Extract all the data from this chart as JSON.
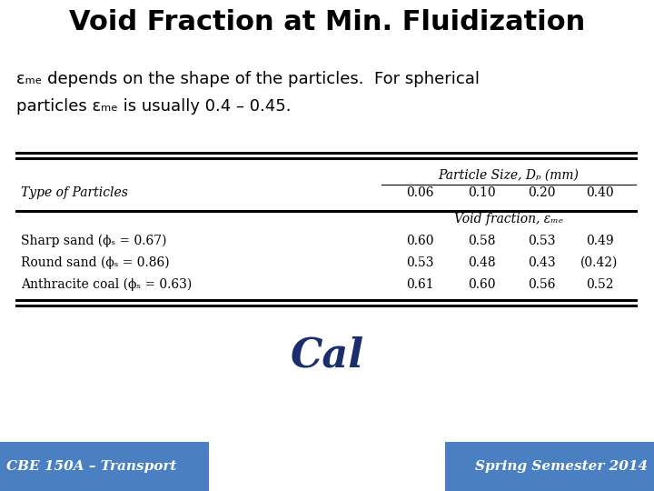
{
  "title": "Void Fraction at Min. Fluidization",
  "col_sizes": [
    "0.06",
    "0.10",
    "0.20",
    "0.40"
  ],
  "rows": [
    {
      "label": "Sharp sand (ϕₛ = 0.67)",
      "values": [
        "0.60",
        "0.58",
        "0.53",
        "0.49"
      ]
    },
    {
      "label": "Round sand (ϕₛ = 0.86)",
      "values": [
        "0.53",
        "0.48",
        "0.43",
        "(0.42)"
      ]
    },
    {
      "label": "Anthracite coal (ϕₛ = 0.63)",
      "values": [
        "0.61",
        "0.60",
        "0.56",
        "0.52"
      ]
    }
  ],
  "footer_left": "CBE 150A – Transport",
  "footer_right": "Spring Semester 2014",
  "footer_bg": "#4a7fc1",
  "footer_text_color": "#ffffff",
  "bg_color": "#ffffff",
  "title_color": "#000000",
  "body_text_color": "#000000",
  "cal_color": "#1a2e6e"
}
